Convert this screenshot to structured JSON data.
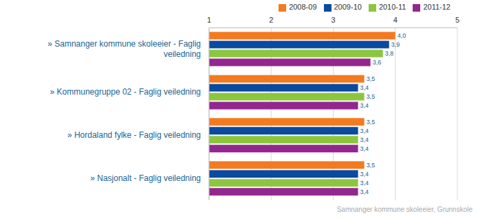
{
  "chart_data": {
    "type": "bar",
    "orientation": "horizontal",
    "categories": [
      "» Samnanger kommune skoleeier - Faglig veiledning",
      "» Kommunegruppe 02 - Faglig veiledning",
      "» Hordaland fylke - Faglig veiledning",
      "» Nasjonalt - Faglig veiledning"
    ],
    "series": [
      {
        "name": "2008-09",
        "color": "#f47a20",
        "values": [
          4.0,
          3.5,
          3.5,
          3.5
        ],
        "value_labels": [
          "4,0",
          "3,5",
          "3,5",
          "3,5"
        ]
      },
      {
        "name": "2009-10",
        "color": "#0a4a9f",
        "values": [
          3.9,
          3.4,
          3.4,
          3.4
        ],
        "value_labels": [
          "3,9",
          "3,4",
          "3,4",
          "3,4"
        ]
      },
      {
        "name": "2010-11",
        "color": "#8cc63f",
        "values": [
          3.8,
          3.5,
          3.4,
          3.4
        ],
        "value_labels": [
          "3,8",
          "3,5",
          "3,4",
          "3,4"
        ]
      },
      {
        "name": "2011-12",
        "color": "#93278f",
        "values": [
          3.6,
          3.4,
          3.4,
          3.4
        ],
        "value_labels": [
          "3,6",
          "3,4",
          "3,4",
          "3,4"
        ]
      }
    ],
    "xlim": [
      1,
      5
    ],
    "xticks": [
      1,
      2,
      3,
      4,
      5
    ],
    "grid": true,
    "legend": "top",
    "data_labels": true,
    "annotations": [
      "Samnanger kommune skoleeier, Grunnskole"
    ]
  }
}
